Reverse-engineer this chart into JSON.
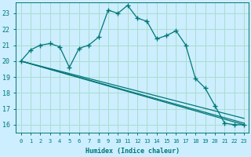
{
  "xlabel": "Humidex (Indice chaleur)",
  "bg_color": "#cceeff",
  "grid_color": "#aaddcc",
  "line_color": "#007777",
  "ylim": [
    15.5,
    23.7
  ],
  "xlim": [
    -0.5,
    23.5
  ],
  "yticks": [
    16,
    17,
    18,
    19,
    20,
    21,
    22,
    23
  ],
  "xticks": [
    0,
    1,
    2,
    3,
    4,
    5,
    6,
    7,
    8,
    9,
    10,
    11,
    12,
    13,
    14,
    15,
    16,
    17,
    18,
    19,
    20,
    21,
    22,
    23
  ],
  "line1_x": [
    0,
    1,
    2,
    3,
    4,
    5,
    6,
    7,
    8,
    9,
    10,
    11,
    12,
    13,
    14,
    15,
    16,
    17,
    18,
    19,
    20,
    21,
    22,
    23
  ],
  "line1_y": [
    20.0,
    20.7,
    21.0,
    21.1,
    20.9,
    19.6,
    20.8,
    21.0,
    21.5,
    23.2,
    23.0,
    23.5,
    22.7,
    22.5,
    21.4,
    21.6,
    21.9,
    21.0,
    18.9,
    18.3,
    17.2,
    16.1,
    16.0,
    16.0
  ],
  "line2_x": [
    0,
    23
  ],
  "line2_y": [
    20.0,
    16.0
  ],
  "line3_x": [
    0,
    23
  ],
  "line3_y": [
    20.0,
    16.1
  ],
  "line4_x": [
    0,
    23
  ],
  "line4_y": [
    20.0,
    16.4
  ]
}
